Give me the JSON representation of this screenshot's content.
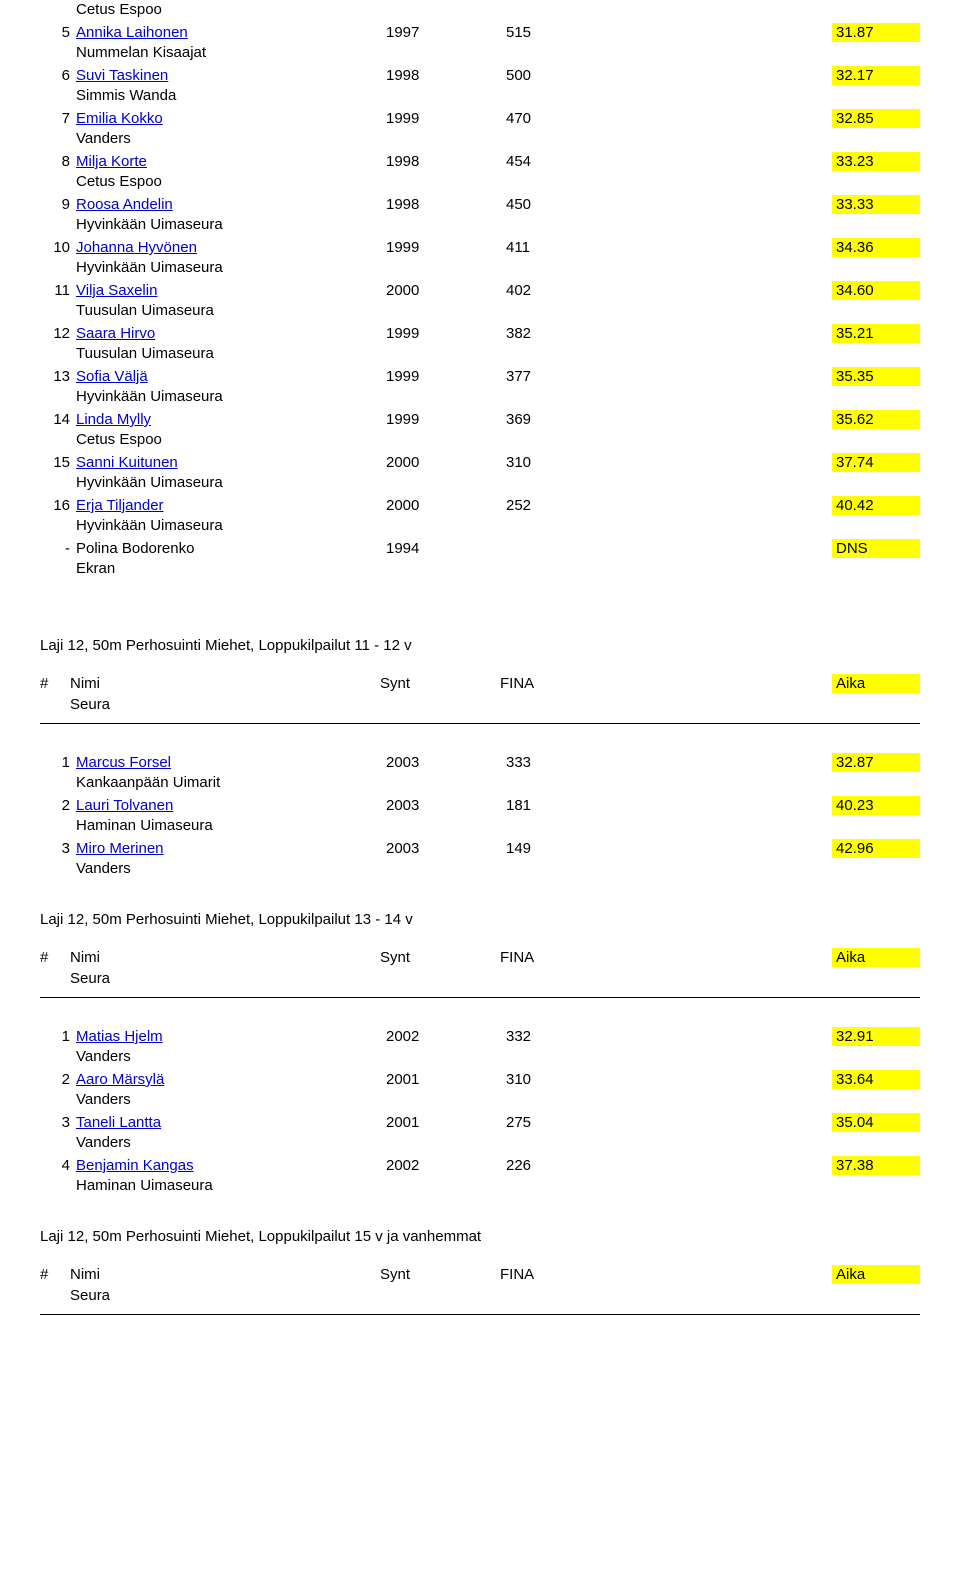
{
  "header_labels": {
    "hash": "#",
    "name": "Nimi",
    "year": "Synt",
    "fina": "FINA",
    "time": "Aika",
    "club": "Seura"
  },
  "block0": {
    "lead_club": "Cetus Espoo",
    "rows": [
      {
        "place": "5",
        "name": "Annika Laihonen",
        "year": "1997",
        "fina": "515",
        "time": "31.87",
        "club": "Nummelan Kisaajat"
      },
      {
        "place": "6",
        "name": "Suvi Taskinen",
        "year": "1998",
        "fina": "500",
        "time": "32.17",
        "club": "Simmis Wanda"
      },
      {
        "place": "7",
        "name": "Emilia Kokko",
        "year": "1999",
        "fina": "470",
        "time": "32.85",
        "club": "Vanders"
      },
      {
        "place": "8",
        "name": "Milja Korte",
        "year": "1998",
        "fina": "454",
        "time": "33.23",
        "club": "Cetus Espoo"
      },
      {
        "place": "9",
        "name": "Roosa Andelin",
        "year": "1998",
        "fina": "450",
        "time": "33.33",
        "club": "Hyvinkään Uimaseura"
      },
      {
        "place": "10",
        "name": "Johanna Hyvönen",
        "year": "1999",
        "fina": "411",
        "time": "34.36",
        "club": "Hyvinkään Uimaseura"
      },
      {
        "place": "11",
        "name": "Vilja Saxelin",
        "year": "2000",
        "fina": "402",
        "time": "34.60",
        "club": "Tuusulan Uimaseura"
      },
      {
        "place": "12",
        "name": "Saara Hirvo",
        "year": "1999",
        "fina": "382",
        "time": "35.21",
        "club": "Tuusulan Uimaseura"
      },
      {
        "place": "13",
        "name": "Sofia Väljä",
        "year": "1999",
        "fina": "377",
        "time": "35.35",
        "club": "Hyvinkään Uimaseura"
      },
      {
        "place": "14",
        "name": "Linda Mylly",
        "year": "1999",
        "fina": "369",
        "time": "35.62",
        "club": "Cetus Espoo"
      },
      {
        "place": "15",
        "name": "Sanni Kuitunen",
        "year": "2000",
        "fina": "310",
        "time": "37.74",
        "club": "Hyvinkään Uimaseura"
      },
      {
        "place": "16",
        "name": "Erja Tiljander",
        "year": "2000",
        "fina": "252",
        "time": "40.42",
        "club": "Hyvinkään Uimaseura"
      },
      {
        "place": "-",
        "name": "Polina Bodorenko",
        "year": "1994",
        "fina": "",
        "time": "DNS",
        "club": "Ekran",
        "plain": true
      }
    ]
  },
  "block1": {
    "title": "Laji 12, 50m Perhosuinti Miehet, Loppukilpailut 11 - 12 v",
    "rows": [
      {
        "place": "1",
        "name": "Marcus Forsel",
        "year": "2003",
        "fina": "333",
        "time": "32.87",
        "club": "Kankaanpään Uimarit"
      },
      {
        "place": "2",
        "name": "Lauri Tolvanen",
        "year": "2003",
        "fina": "181",
        "time": "40.23",
        "club": "Haminan Uimaseura"
      },
      {
        "place": "3",
        "name": "Miro Merinen",
        "year": "2003",
        "fina": "149",
        "time": "42.96",
        "club": "Vanders"
      }
    ]
  },
  "block2": {
    "title": "Laji 12, 50m Perhosuinti Miehet, Loppukilpailut 13 - 14 v",
    "rows": [
      {
        "place": "1",
        "name": "Matias Hjelm",
        "year": "2002",
        "fina": "332",
        "time": "32.91",
        "club": "Vanders"
      },
      {
        "place": "2",
        "name": "Aaro Märsylä",
        "year": "2001",
        "fina": "310",
        "time": "33.64",
        "club": "Vanders"
      },
      {
        "place": "3",
        "name": "Taneli Lantta",
        "year": "2001",
        "fina": "275",
        "time": "35.04",
        "club": "Vanders"
      },
      {
        "place": "4",
        "name": "Benjamin Kangas",
        "year": "2002",
        "fina": "226",
        "time": "37.38",
        "club": "Haminan Uimaseura"
      }
    ]
  },
  "block3": {
    "title": "Laji 12, 50m Perhosuinti Miehet, Loppukilpailut 15 v ja vanhemmat"
  }
}
